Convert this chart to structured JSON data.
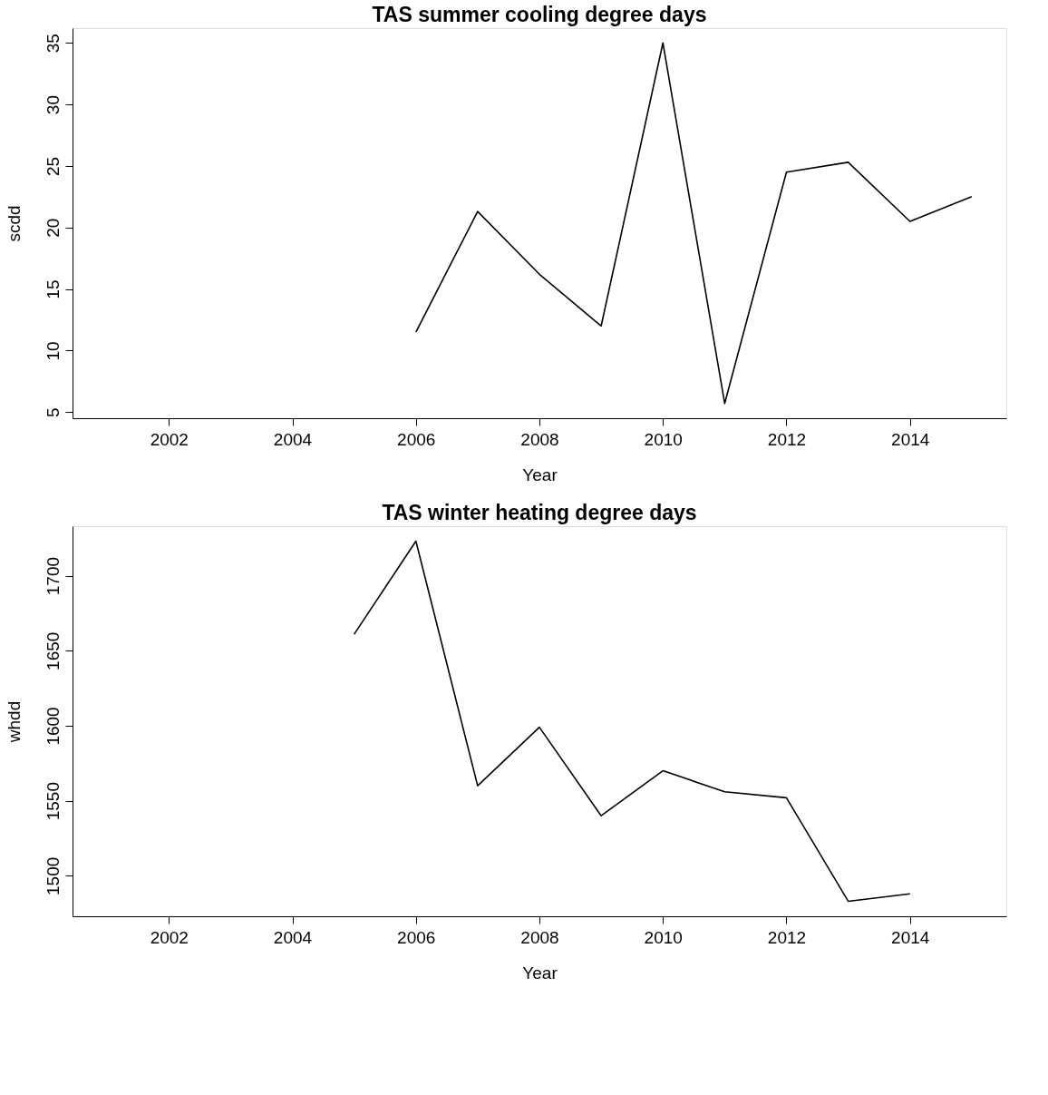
{
  "chart_data": [
    {
      "type": "line",
      "title": "TAS summer cooling degree days",
      "xlabel": "Year",
      "ylabel": "scdd",
      "x": [
        2006,
        2007,
        2008,
        2009,
        2010,
        2011,
        2012,
        2013,
        2014,
        2015
      ],
      "series": [
        {
          "color": "#000000",
          "values": [
            11.5,
            21.3,
            16.2,
            12.0,
            35.0,
            5.7,
            24.5,
            25.3,
            20.5,
            22.5
          ]
        }
      ],
      "xlim": [
        2000.44,
        2015.56
      ],
      "xticks": [
        2002,
        2004,
        2006,
        2008,
        2010,
        2012,
        2014
      ],
      "ylim": [
        4.5,
        36.2
      ],
      "yticks": [
        5,
        10,
        15,
        20,
        25,
        30,
        35
      ],
      "grid": false,
      "marker": "none",
      "line_style": "solid"
    },
    {
      "type": "line",
      "title": "TAS winter heating degree days",
      "xlabel": "Year",
      "ylabel": "whdd",
      "x": [
        2005,
        2006,
        2007,
        2008,
        2009,
        2010,
        2011,
        2012,
        2013,
        2014
      ],
      "series": [
        {
          "color": "#000000",
          "values": [
            1661,
            1723,
            1560,
            1599,
            1540,
            1570,
            1556,
            1552,
            1483,
            1488
          ]
        }
      ],
      "xlim": [
        2000.44,
        2015.56
      ],
      "xticks": [
        2002,
        2004,
        2006,
        2008,
        2010,
        2012,
        2014
      ],
      "ylim": [
        1473,
        1733
      ],
      "yticks": [
        1500,
        1550,
        1600,
        1650,
        1700
      ],
      "grid": false,
      "marker": "none",
      "line_style": "solid"
    }
  ]
}
